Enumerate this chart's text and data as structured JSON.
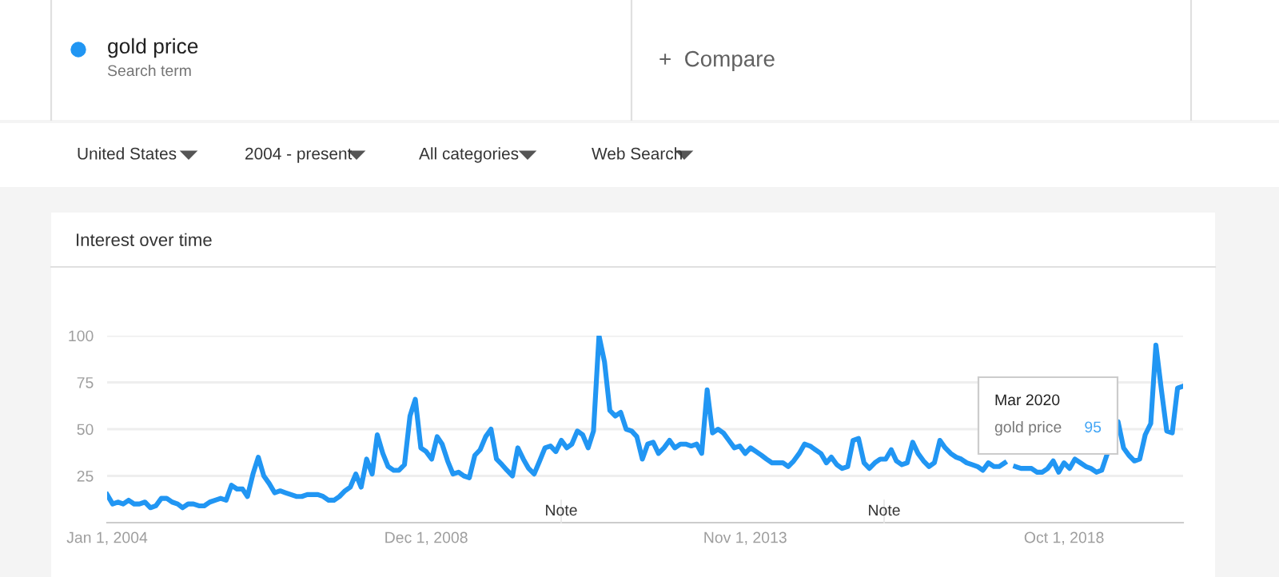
{
  "chart_data": {
    "type": "line",
    "title": "Interest over time",
    "annotations": [
      "Search term",
      "+  Compare",
      "United States",
      "2004 - present",
      "All categories",
      "Web Search",
      "Note",
      "Note",
      "Mar 2020",
      "95"
    ],
    "series": [
      {
        "name": "gold price",
        "color": "#2196f3",
        "x": [
          "2004-01",
          "2004-02",
          "2004-03",
          "2004-04",
          "2004-05",
          "2004-06",
          "2004-07",
          "2004-08",
          "2004-09",
          "2004-10",
          "2004-11",
          "2004-12",
          "2005-01",
          "2005-02",
          "2005-03",
          "2005-04",
          "2005-05",
          "2005-06",
          "2005-07",
          "2005-08",
          "2005-09",
          "2005-10",
          "2005-11",
          "2005-12",
          "2006-01",
          "2006-02",
          "2006-03",
          "2006-04",
          "2006-05",
          "2006-06",
          "2006-07",
          "2006-08",
          "2006-09",
          "2006-10",
          "2006-11",
          "2006-12",
          "2007-01",
          "2007-02",
          "2007-03",
          "2007-04",
          "2007-05",
          "2007-06",
          "2007-07",
          "2007-08",
          "2007-09",
          "2007-10",
          "2007-11",
          "2007-12",
          "2008-01",
          "2008-02",
          "2008-03",
          "2008-04",
          "2008-05",
          "2008-06",
          "2008-07",
          "2008-08",
          "2008-09",
          "2008-10",
          "2008-11",
          "2008-12",
          "2009-01",
          "2009-02",
          "2009-03",
          "2009-04",
          "2009-05",
          "2009-06",
          "2009-07",
          "2009-08",
          "2009-09",
          "2009-10",
          "2009-11",
          "2009-12",
          "2010-01",
          "2010-02",
          "2010-03",
          "2010-04",
          "2010-05",
          "2010-06",
          "2010-07",
          "2010-08",
          "2010-09",
          "2010-10",
          "2010-11",
          "2010-12",
          "2011-01",
          "2011-02",
          "2011-03",
          "2011-04",
          "2011-05",
          "2011-06",
          "2011-07",
          "2011-08",
          "2011-09",
          "2011-10",
          "2011-11",
          "2011-12",
          "2012-01",
          "2012-02",
          "2012-03",
          "2012-04",
          "2012-05",
          "2012-06",
          "2012-07",
          "2012-08",
          "2012-09",
          "2012-10",
          "2012-11",
          "2012-12",
          "2013-01",
          "2013-02",
          "2013-03",
          "2013-04",
          "2013-05",
          "2013-06",
          "2013-07",
          "2013-08",
          "2013-09",
          "2013-10",
          "2013-11",
          "2013-12",
          "2014-01",
          "2014-02",
          "2014-03",
          "2014-04",
          "2014-05",
          "2014-06",
          "2014-07",
          "2014-08",
          "2014-09",
          "2014-10",
          "2014-11",
          "2014-12",
          "2015-01",
          "2015-02",
          "2015-03",
          "2015-04",
          "2015-05",
          "2015-06",
          "2015-07",
          "2015-08",
          "2015-09",
          "2015-10",
          "2015-11",
          "2015-12",
          "2016-01",
          "2016-02",
          "2016-03",
          "2016-04",
          "2016-05",
          "2016-06",
          "2016-07",
          "2016-08",
          "2016-09",
          "2016-10",
          "2016-11",
          "2016-12",
          "2017-01",
          "2017-02",
          "2017-03",
          "2017-04",
          "2017-05",
          "2017-06",
          "2017-07",
          "2017-08",
          "2017-09",
          "2017-10",
          "2017-11",
          "2017-12",
          "2018-01",
          "2018-02",
          "2018-03",
          "2018-04",
          "2018-05",
          "2018-06",
          "2018-07",
          "2018-08",
          "2018-09",
          "2018-10",
          "2018-11",
          "2018-12",
          "2019-01",
          "2019-02",
          "2019-03",
          "2019-04",
          "2019-05",
          "2019-08",
          "2019-09",
          "2019-10",
          "2019-11",
          "2019-12",
          "2020-01",
          "2020-02",
          "2020-03",
          "2020-04",
          "2020-05",
          "2020-06",
          "2020-07",
          "2020-08"
        ],
        "values": [
          15,
          10,
          11,
          10,
          12,
          10,
          10,
          11,
          8,
          9,
          13,
          13,
          11,
          10,
          8,
          10,
          10,
          9,
          9,
          11,
          12,
          13,
          12,
          20,
          18,
          18,
          14,
          26,
          35,
          25,
          21,
          16,
          17,
          16,
          15,
          14,
          14,
          15,
          15,
          15,
          14,
          12,
          12,
          14,
          17,
          19,
          26,
          19,
          34,
          26,
          47,
          37,
          30,
          28,
          28,
          31,
          57,
          66,
          40,
          38,
          34,
          46,
          42,
          33,
          26,
          27,
          25,
          24,
          36,
          39,
          46,
          50,
          34,
          31,
          28,
          25,
          40,
          34,
          29,
          26,
          33,
          40,
          41,
          38,
          44,
          40,
          42,
          49,
          47,
          40,
          49,
          100,
          86,
          60,
          57,
          59,
          50,
          49,
          46,
          34,
          42,
          43,
          37,
          40,
          44,
          40,
          42,
          42,
          41,
          42,
          37,
          71,
          48,
          50,
          48,
          44,
          40,
          41,
          37,
          40,
          38,
          36,
          34,
          32,
          32,
          32,
          30,
          33,
          37,
          42,
          41,
          39,
          37,
          32,
          35,
          31,
          29,
          30,
          44,
          45,
          32,
          29,
          32,
          34,
          34,
          39,
          33,
          31,
          32,
          43,
          37,
          33,
          30,
          32,
          44,
          40,
          37,
          35,
          34,
          32,
          31,
          30,
          28,
          32,
          30,
          30,
          32,
          null,
          30,
          29,
          29,
          29,
          27,
          27,
          29,
          33,
          27,
          32,
          29,
          34,
          32,
          30,
          29,
          27,
          28,
          54,
          40,
          36,
          33,
          34,
          47,
          53,
          95,
          71,
          49,
          48,
          72,
          73
        ]
      }
    ],
    "xlim": [
      "2004-01",
      "2020-08"
    ],
    "xticks": [
      {
        "value": "2004-01",
        "label": "Jan 1, 2004"
      },
      {
        "value": "2008-12",
        "label": "Dec 1, 2008"
      },
      {
        "value": "2013-11",
        "label": "Nov 1, 2013"
      },
      {
        "value": "2018-10",
        "label": "Oct 1, 2018"
      }
    ],
    "ylim": [
      0,
      100
    ],
    "yticks": [
      25,
      50,
      75,
      100
    ],
    "grid": "y",
    "legend": "top left",
    "marker": "none",
    "line_style": "solid"
  }
}
